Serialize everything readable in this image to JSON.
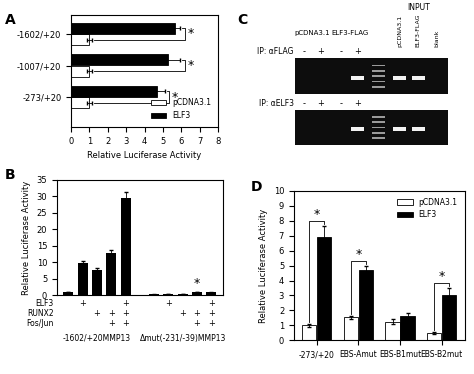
{
  "chart_data": [
    {
      "type": "bar",
      "title": "A",
      "orientation": "horizontal",
      "categories": [
        "-1602/+20",
        "-1007/+20",
        "-273/+20"
      ],
      "series": [
        {
          "name": "pCDNA3.1",
          "color": "#ffffff",
          "values": [
            1.0,
            1.0,
            1.0
          ],
          "errors": [
            0.15,
            0.15,
            0.12
          ]
        },
        {
          "name": "ELF3",
          "color": "#000000",
          "values": [
            5.65,
            5.3,
            4.65
          ],
          "errors": [
            0.3,
            0.65,
            0.45
          ]
        }
      ],
      "xlim": [
        0,
        8
      ],
      "xticks": [
        0,
        1,
        2,
        3,
        4,
        5,
        6,
        7,
        8
      ],
      "xlabel": "Relative Luciferase Activity",
      "legend": "lower right",
      "annotations": [
        {
          "text": "*",
          "category": "-1602/+20"
        },
        {
          "text": "*",
          "category": "-1007/+20"
        },
        {
          "text": "*",
          "category": "-273/+20"
        }
      ]
    },
    {
      "type": "bar",
      "title": "B",
      "color": "#000000",
      "categories": [
        "-1602/+20MMP13",
        "Δmut(-231/-39)MMP13"
      ],
      "values": [
        [
          1.0,
          9.8,
          7.8,
          12.8,
          29.5
        ],
        [
          0.3,
          0.33,
          0.38,
          1.08,
          0.9
        ]
      ],
      "errors": [
        [
          0.1,
          0.5,
          0.4,
          1.0,
          1.8
        ],
        [
          0.03,
          0.04,
          0.05,
          0.08,
          0.2
        ]
      ],
      "ylim": [
        0,
        35
      ],
      "yticks": [
        0,
        5,
        10,
        15,
        20,
        25,
        30,
        35
      ],
      "ylabel": "Relative Luciferase Activity",
      "treatments": {
        "rows": [
          "ELF3",
          "RUNX2",
          "Fos/Jun"
        ],
        "cells": [
          [
            null,
            "+",
            null,
            null,
            "+",
            null,
            "+",
            null,
            null,
            "+"
          ],
          [
            null,
            null,
            "+",
            "+",
            "+",
            null,
            null,
            "+",
            "+",
            "+"
          ],
          [
            null,
            null,
            null,
            "+",
            "+",
            null,
            null,
            null,
            "+",
            "+"
          ]
        ]
      },
      "annotations": [
        {
          "text": "*",
          "category": "Δmut(-231/-39)MMP13",
          "bar": 3
        }
      ]
    },
    {
      "type": "bar",
      "title": "D",
      "categories": [
        "-273/+20",
        "EBS-Amut",
        "EBS-B1mut",
        "EBS-B2mut"
      ],
      "series": [
        {
          "name": "pCDNA3.1",
          "color": "#ffffff",
          "values": [
            1.0,
            1.55,
            1.25,
            0.5
          ],
          "errors": [
            0.1,
            0.1,
            0.15,
            0.08
          ]
        },
        {
          "name": "ELF3",
          "color": "#000000",
          "values": [
            6.9,
            4.7,
            1.65,
            3.05
          ],
          "errors": [
            0.75,
            0.3,
            0.2,
            0.45
          ]
        }
      ],
      "ylim": [
        0,
        10
      ],
      "yticks": [
        0,
        1,
        2,
        3,
        4,
        5,
        6,
        7,
        8,
        9,
        10
      ],
      "ylabel": "Relative Luciferase Activity",
      "legend": "upper right",
      "annotations": [
        {
          "text": "*",
          "category": "-273/+20"
        },
        {
          "text": "*",
          "category": "EBS-Amut"
        },
        {
          "text": "*",
          "category": "EBS-B2mut"
        }
      ]
    }
  ],
  "gel": {
    "title": "C",
    "groups": [
      "pCDNA3.1",
      "ELF3-FLAG"
    ],
    "lane_signs": [
      "-",
      "+",
      "-",
      "+"
    ],
    "input_label": "INPUT",
    "input_lanes": [
      "pCDNA3.1",
      "ELF3-FLAG",
      "blank"
    ],
    "rows": [
      {
        "label": "IP: αFLAG",
        "ip_bands": [
          false,
          false,
          false,
          true
        ],
        "input_bands": [
          true,
          true,
          false
        ]
      },
      {
        "label": "IP: αELF3",
        "ip_bands": [
          false,
          false,
          false,
          true
        ],
        "input_bands": [
          true,
          true,
          false
        ]
      }
    ]
  }
}
